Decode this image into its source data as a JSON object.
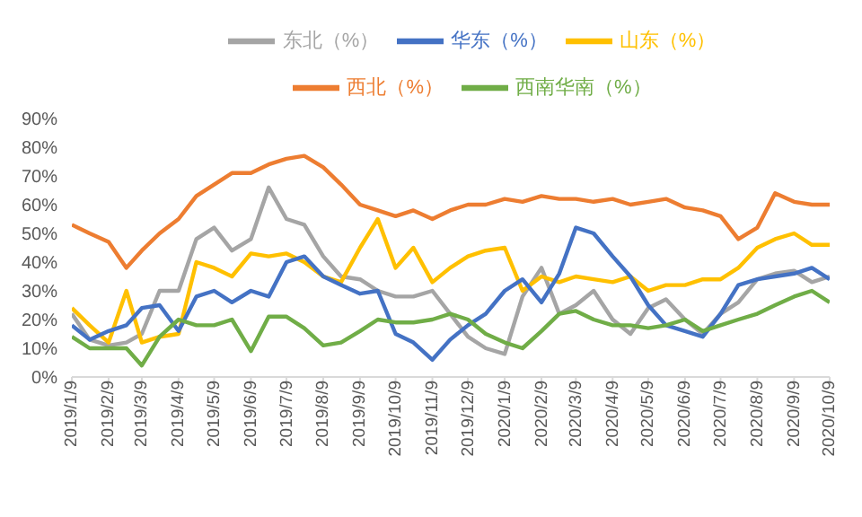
{
  "chart_data": {
    "type": "line",
    "x": [
      "2019-01-09",
      "2019-01-24",
      "2019-02-09",
      "2019-02-24",
      "2019-03-09",
      "2019-03-24",
      "2019-04-09",
      "2019-04-24",
      "2019-05-09",
      "2019-05-24",
      "2019-06-09",
      "2019-06-24",
      "2019-07-09",
      "2019-07-24",
      "2019-08-09",
      "2019-08-24",
      "2019-09-09",
      "2019-09-24",
      "2019-10-09",
      "2019-10-24",
      "2019-11-09",
      "2019-11-24",
      "2019-12-09",
      "2019-12-24",
      "2020-01-09",
      "2020-01-24",
      "2020-02-09",
      "2020-02-24",
      "2020-03-09",
      "2020-03-24",
      "2020-04-09",
      "2020-04-24",
      "2020-05-09",
      "2020-05-24",
      "2020-06-09",
      "2020-06-24",
      "2020-07-09",
      "2020-07-24",
      "2020-08-09",
      "2020-08-24",
      "2020-09-09",
      "2020-09-24",
      "2020-10-09"
    ],
    "series": [
      {
        "name": "西北（%）",
        "color": "#ed7d31",
        "values": [
          53,
          50,
          47,
          38,
          44,
          50,
          55,
          63,
          67,
          71,
          71,
          74,
          76,
          77,
          73,
          67,
          60,
          58,
          56,
          58,
          55,
          58,
          60,
          60,
          62,
          61,
          63,
          62,
          62,
          61,
          62,
          60,
          61,
          62,
          59,
          58,
          56,
          48,
          52,
          64,
          61,
          60,
          60
        ]
      },
      {
        "name": "东北（%）",
        "color": "#a5a5a5",
        "values": [
          22,
          13,
          11,
          12,
          15,
          30,
          30,
          48,
          52,
          44,
          48,
          66,
          55,
          53,
          42,
          35,
          34,
          30,
          28,
          28,
          30,
          22,
          14,
          10,
          8,
          28,
          38,
          22,
          25,
          30,
          20,
          15,
          24,
          27,
          20,
          15,
          22,
          26,
          34,
          36,
          37,
          33,
          35
        ]
      },
      {
        "name": "山东（%）",
        "color": "#ffc000",
        "values": [
          24,
          18,
          12,
          30,
          12,
          14,
          15,
          40,
          38,
          35,
          43,
          42,
          43,
          40,
          35,
          33,
          45,
          55,
          38,
          45,
          33,
          38,
          42,
          44,
          45,
          30,
          35,
          33,
          35,
          34,
          33,
          35,
          30,
          32,
          32,
          34,
          34,
          38,
          45,
          48,
          50,
          46,
          46
        ]
      },
      {
        "name": "华东（%）",
        "color": "#4472c4",
        "values": [
          18,
          13,
          16,
          18,
          24,
          25,
          16,
          28,
          30,
          26,
          30,
          28,
          40,
          42,
          35,
          32,
          29,
          30,
          15,
          12,
          6,
          13,
          18,
          22,
          30,
          34,
          26,
          36,
          52,
          50,
          42,
          35,
          25,
          18,
          16,
          14,
          22,
          32,
          34,
          35,
          36,
          38,
          34
        ]
      },
      {
        "name": "西南华南（%）",
        "color": "#70ad47",
        "values": [
          14,
          10,
          10,
          10,
          4,
          14,
          20,
          18,
          18,
          20,
          9,
          21,
          21,
          17,
          11,
          12,
          16,
          20,
          19,
          19,
          20,
          22,
          20,
          15,
          12,
          10,
          16,
          22,
          23,
          20,
          18,
          18,
          17,
          18,
          20,
          16,
          18,
          20,
          22,
          25,
          28,
          30,
          26
        ]
      }
    ],
    "xlim": [
      "2019-01-09",
      "2020-10-09"
    ],
    "xticks": [
      {
        "value": "2019-01-09",
        "label": "2019/1/9"
      },
      {
        "value": "2019-02-09",
        "label": "2019/2/9"
      },
      {
        "value": "2019-03-09",
        "label": "2019/3/9"
      },
      {
        "value": "2019-04-09",
        "label": "2019/4/9"
      },
      {
        "value": "2019-05-09",
        "label": "2019/5/9"
      },
      {
        "value": "2019-06-09",
        "label": "2019/6/9"
      },
      {
        "value": "2019-07-09",
        "label": "2019/7/9"
      },
      {
        "value": "2019-08-09",
        "label": "2019/8/9"
      },
      {
        "value": "2019-09-09",
        "label": "2019/9/9"
      },
      {
        "value": "2019-10-09",
        "label": "2019/10/9"
      },
      {
        "value": "2019-11-09",
        "label": "2019/11/9"
      },
      {
        "value": "2019-12-09",
        "label": "2019/12/9"
      },
      {
        "value": "2020-01-09",
        "label": "2020/1/9"
      },
      {
        "value": "2020-02-09",
        "label": "2020/2/9"
      },
      {
        "value": "2020-03-09",
        "label": "2020/3/9"
      },
      {
        "value": "2020-04-09",
        "label": "2020/4/9"
      },
      {
        "value": "2020-05-09",
        "label": "2020/5/9"
      },
      {
        "value": "2020-06-09",
        "label": "2020/6/9"
      },
      {
        "value": "2020-07-09",
        "label": "2020/7/9"
      },
      {
        "value": "2020-08-09",
        "label": "2020/8/9"
      },
      {
        "value": "2020-09-09",
        "label": "2020/9/9"
      },
      {
        "value": "2020-10-09",
        "label": "2020/10/9"
      }
    ],
    "ylim": [
      0,
      90
    ],
    "yticks": [
      {
        "value": 0,
        "label": "0%"
      },
      {
        "value": 10,
        "label": "10%"
      },
      {
        "value": 20,
        "label": "20%"
      },
      {
        "value": 30,
        "label": "30%"
      },
      {
        "value": 40,
        "label": "40%"
      },
      {
        "value": 50,
        "label": "50%"
      },
      {
        "value": 60,
        "label": "60%"
      },
      {
        "value": 70,
        "label": "70%"
      },
      {
        "value": 80,
        "label": "80%"
      },
      {
        "value": 90,
        "label": "90%"
      }
    ],
    "grid": false,
    "legend": "top",
    "marker": "none",
    "line_style": "solid"
  }
}
